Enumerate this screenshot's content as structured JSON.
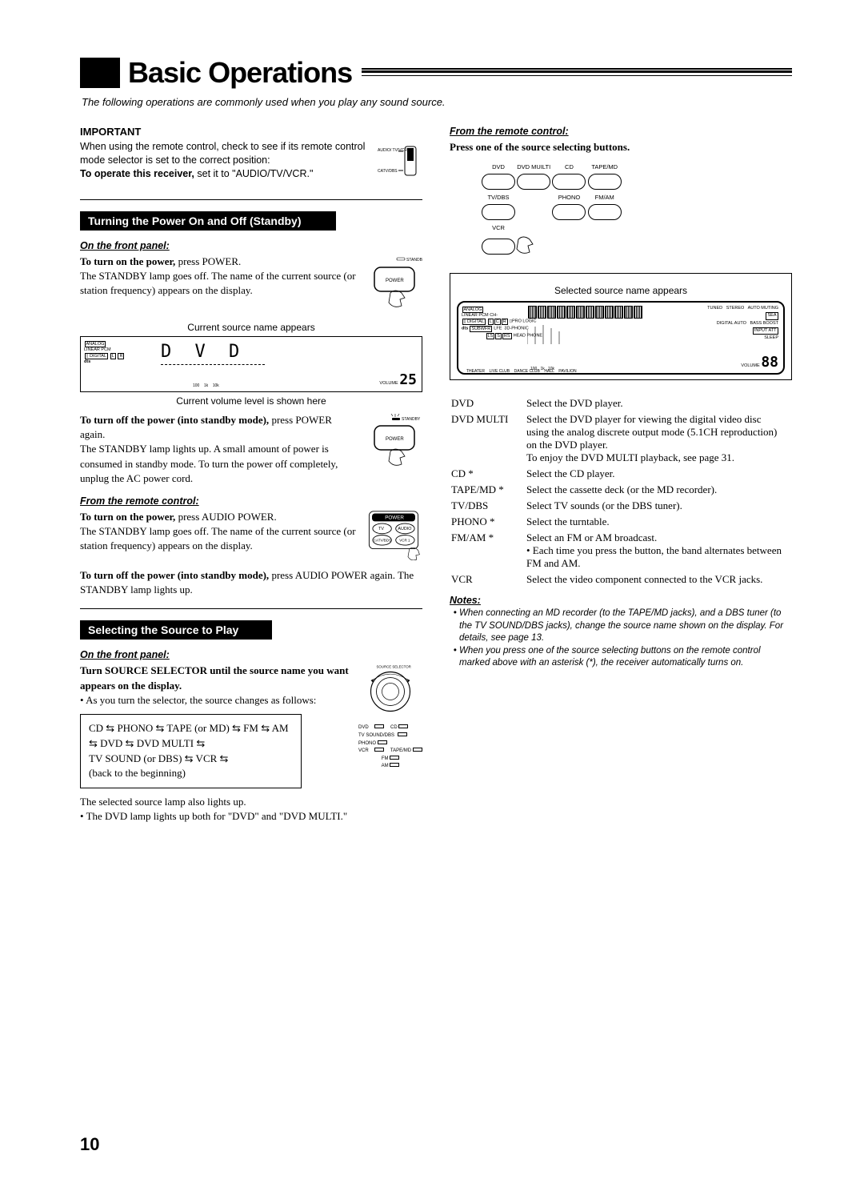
{
  "title": "Basic Operations",
  "intro": "The following operations are commonly used when you play any sound source.",
  "important": {
    "heading": "IMPORTANT",
    "text": "When using the remote control, check to see if its remote control mode selector is set to the correct position:",
    "bold": "To operate this receiver,",
    "tail": " set it to \"AUDIO/TV/VCR.\"",
    "selector_top": "AUDIO/\nTV/VCR",
    "selector_bottom": "CATV/DBS"
  },
  "section1": {
    "title": "Turning the Power On and Off (Standby)",
    "front_label": "On the front panel:",
    "on_text_bold": "To turn on the power,",
    "on_text": " press POWER.\nThe STANDBY lamp goes off. The name of the current source (or station frequency) appears on the display.",
    "standby_label": "STANDBY",
    "power_label": "POWER",
    "caption_top": "Current source name appears",
    "caption_bottom": "Current volume level is shown here",
    "display_dvd": "D V D",
    "display_vol_label": "VOLUME",
    "display_vol": "25",
    "off_bold": "To turn off the power (into standby mode),",
    "off_text": " press POWER again.\nThe STANDBY lamp lights up. A small amount of power is consumed in standby mode. To turn the power off completely, unplug the AC power cord.",
    "remote_label": "From the remote control:",
    "remote_on_bold": "To turn on the power,",
    "remote_on_text": " press AUDIO POWER.\nThe STANDBY lamp goes off. The name of the current source (or station frequency) appears on the display.",
    "remote_btn_power": "POWER",
    "remote_btn_tv": "TV",
    "remote_btn_audio": "AUDIO",
    "remote_btn_catv": "CATV/BDS",
    "remote_btn_vcr": "VCR 1",
    "remote_off_bold": "To turn off the power (into standby mode),",
    "remote_off_text": " press AUDIO POWER again. The STANDBY lamp lights up."
  },
  "section2": {
    "title": "Selecting the Source to Play",
    "front_label": "On the front panel:",
    "turn_bold": "Turn SOURCE SELECTOR until the source name you want appears on the display.",
    "bullet1": "As you turn the selector, the source changes as follows:",
    "sequence": "CD ⇆ PHONO ⇆ TAPE (or MD) ⇆ FM ⇆ AM ⇆ DVD ⇆ DVD MULTI ⇆\nTV SOUND (or DBS) ⇆ VCR ⇆\n(back to the beginning)",
    "after1": "The selected source lamp also lights up.",
    "after2": "The DVD lamp lights up both for \"DVD\" and \"DVD MULTI.\"",
    "selector_caption": "SOURCE SELECTOR",
    "lamps": [
      "DVD",
      "CD",
      "TV SOUND/DBS",
      "PHONO",
      "VCR",
      "TAPE/MD",
      "FM",
      "AM"
    ]
  },
  "right": {
    "remote_label": "From the remote control:",
    "press_text": "Press one of the source selecting buttons.",
    "buttons_row1": [
      "DVD",
      "DVD MUILTI",
      "CD",
      "TAPE/MD"
    ],
    "buttons_row2": [
      "TV/DBS",
      "",
      "PHONO",
      "FM/AM"
    ],
    "buttons_row3": [
      "VCR",
      "",
      "",
      ""
    ],
    "display_caption": "Selected source name appears",
    "display_vol_label": "VOLUME",
    "display_vol": "88",
    "sources": [
      [
        "DVD",
        "Select the DVD player."
      ],
      [
        "DVD MULTI",
        "Select the DVD player for viewing the digital video disc using the analog discrete output mode (5.1CH reproduction) on the DVD player.\nTo enjoy the DVD MULTI playback, see page 31."
      ],
      [
        "CD *",
        "Select the CD player."
      ],
      [
        "TAPE/MD *",
        "Select the cassette deck (or the MD recorder)."
      ],
      [
        "TV/DBS",
        "Select TV sounds (or the DBS tuner)."
      ],
      [
        "PHONO *",
        "Select the turntable."
      ],
      [
        "FM/AM *",
        "Select an FM or AM broadcast.\n• Each time you press the button, the band alternates between FM and AM."
      ],
      [
        "VCR",
        "Select the video component connected to the VCR jacks."
      ]
    ],
    "notes_head": "Notes:",
    "notes": [
      "When connecting an MD recorder (to the TAPE/MD jacks), and a DBS tuner (to the TV SOUND/DBS jacks), change the source name shown on the display. For details, see page 13.",
      "When you press one of the source selecting buttons on the remote control marked above with an asterisk (*), the receiver automatically turns on."
    ]
  },
  "page_number": "10",
  "colors": {
    "black": "#000000",
    "white": "#ffffff"
  }
}
